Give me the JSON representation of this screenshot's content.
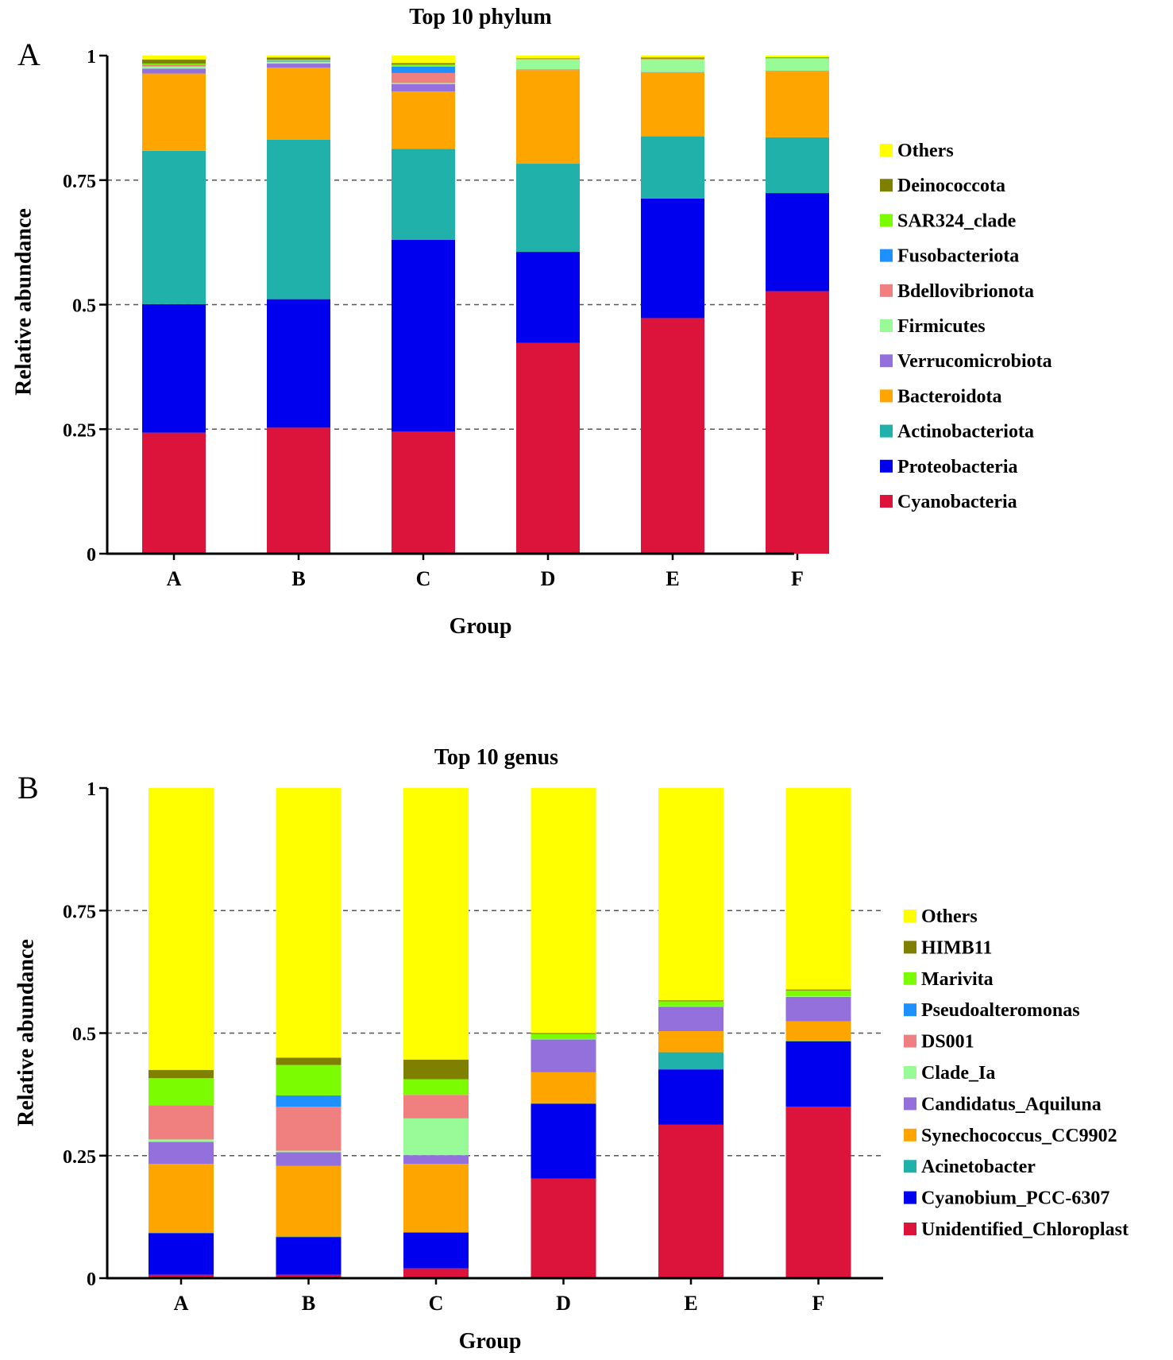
{
  "chart_data": [
    {
      "type": "bar",
      "stacked": true,
      "panel_label": "A",
      "title": "Top  10  phylum",
      "xlabel": "Group",
      "ylabel": "Relative  abundance",
      "ylim": [
        0,
        1
      ],
      "yticks": [
        0,
        0.25,
        0.5,
        0.75,
        1
      ],
      "ytick_labels": [
        "0",
        "0.25",
        "0.5",
        "0.75",
        "1"
      ],
      "grid": "dashed horizontal at 0.25, 0.5, 0.75",
      "legend_position": "right",
      "categories": [
        "A",
        "B",
        "C",
        "D",
        "E",
        "F"
      ],
      "series": [
        {
          "name": "Cyanobacteria",
          "color": "#DC143C",
          "values": [
            0.243,
            0.253,
            0.245,
            0.423,
            0.473,
            0.527
          ]
        },
        {
          "name": "Proteobacteria",
          "color": "#0000EE",
          "values": [
            0.258,
            0.258,
            0.385,
            0.183,
            0.24,
            0.197
          ]
        },
        {
          "name": "Actinobacteriota",
          "color": "#20B2AA",
          "values": [
            0.308,
            0.32,
            0.183,
            0.177,
            0.125,
            0.112
          ]
        },
        {
          "name": "Bacteroidota",
          "color": "#FFA500",
          "values": [
            0.155,
            0.145,
            0.115,
            0.188,
            0.128,
            0.132
          ]
        },
        {
          "name": "Verrucomicrobiota",
          "color": "#9370DB",
          "values": [
            0.01,
            0.008,
            0.015,
            0.001,
            0.001,
            0.001
          ]
        },
        {
          "name": "Firmicutes",
          "color": "#98FB98",
          "values": [
            0.004,
            0.003,
            0.002,
            0.02,
            0.025,
            0.025
          ]
        },
        {
          "name": "Bdellovibrionota",
          "color": "#F08080",
          "values": [
            0.003,
            0.002,
            0.02,
            0.001,
            0.001,
            0.001
          ]
        },
        {
          "name": "Fusobacteriota",
          "color": "#1E90FF",
          "values": [
            0.001,
            0.001,
            0.013,
            0.0,
            0.0,
            0.0
          ]
        },
        {
          "name": "SAR324_clade",
          "color": "#7CFC00",
          "values": [
            0.002,
            0.002,
            0.004,
            0.001,
            0.001,
            0.001
          ]
        },
        {
          "name": "Deinococcota",
          "color": "#808000",
          "values": [
            0.008,
            0.004,
            0.003,
            0.001,
            0.002,
            0.001
          ]
        },
        {
          "name": "Others",
          "color": "#FFFF00",
          "values": [
            0.008,
            0.004,
            0.015,
            0.005,
            0.004,
            0.003
          ]
        }
      ]
    },
    {
      "type": "bar",
      "stacked": true,
      "panel_label": "B",
      "title": "Top  10  genus",
      "xlabel": "Group",
      "ylabel": "Relative  abundance",
      "ylim": [
        0,
        1
      ],
      "yticks": [
        0,
        0.25,
        0.5,
        0.75,
        1
      ],
      "ytick_labels": [
        "0",
        "0.25",
        "0.5",
        "0.75",
        "1"
      ],
      "grid": "dashed horizontal at 0.25, 0.5, 0.75",
      "legend_position": "right",
      "categories": [
        "A",
        "B",
        "C",
        "D",
        "E",
        "F"
      ],
      "series": [
        {
          "name": "Unidentified_Chloroplast",
          "color": "#DC143C",
          "values": [
            0.007,
            0.007,
            0.02,
            0.203,
            0.313,
            0.35
          ]
        },
        {
          "name": "Cyanobium_PCC-6307",
          "color": "#0000EE",
          "values": [
            0.085,
            0.077,
            0.073,
            0.153,
            0.113,
            0.133
          ]
        },
        {
          "name": "Acinetobacter",
          "color": "#20B2AA",
          "values": [
            0.001,
            0.001,
            0.001,
            0.001,
            0.035,
            0.001
          ]
        },
        {
          "name": "Synechococcus_CC9902",
          "color": "#FFA500",
          "values": [
            0.14,
            0.144,
            0.139,
            0.063,
            0.043,
            0.04
          ]
        },
        {
          "name": "Candidatus_Aquiluna",
          "color": "#9370DB",
          "values": [
            0.045,
            0.028,
            0.018,
            0.067,
            0.05,
            0.05
          ]
        },
        {
          "name": "Clade_Ia",
          "color": "#98FB98",
          "values": [
            0.005,
            0.003,
            0.075,
            0.001,
            0.001,
            0.001
          ]
        },
        {
          "name": "DS001",
          "color": "#F08080",
          "values": [
            0.07,
            0.09,
            0.048,
            0.0,
            0.0,
            0.0
          ]
        },
        {
          "name": "Pseudoalteromonas",
          "color": "#1E90FF",
          "values": [
            0.0,
            0.023,
            0.0,
            0.0,
            0.0,
            0.0
          ]
        },
        {
          "name": "Marivita",
          "color": "#7CFC00",
          "values": [
            0.055,
            0.062,
            0.032,
            0.01,
            0.01,
            0.012
          ]
        },
        {
          "name": "HIMB11",
          "color": "#808000",
          "values": [
            0.017,
            0.015,
            0.04,
            0.002,
            0.002,
            0.002
          ]
        },
        {
          "name": "Others",
          "color": "#FFFF00",
          "values": [
            0.575,
            0.55,
            0.554,
            0.5,
            0.433,
            0.411
          ]
        }
      ]
    }
  ]
}
